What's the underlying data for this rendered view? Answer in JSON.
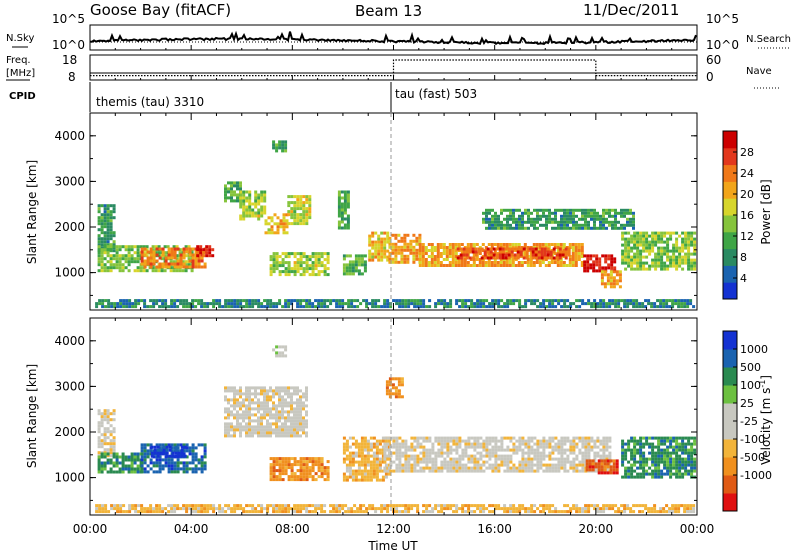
{
  "header": {
    "station": "Goose Bay (fitACF)",
    "beam": "Beam 13",
    "date": "11/Dec/2011"
  },
  "noise_panel": {
    "left_label": "N.Sky",
    "right_label": "N.Search",
    "left_ticks": [
      "10^5",
      "10^0"
    ],
    "right_ticks": [
      "10^5",
      "10^0"
    ]
  },
  "freq_panel": {
    "left_label_1": "Freq.",
    "left_label_2": "[MHz]",
    "right_label": "Nave",
    "left_ticks": [
      "18",
      "8"
    ],
    "right_ticks": [
      "60",
      "0"
    ],
    "nave_low": 8,
    "nave_high": 60,
    "nave_high_interval": [
      "12:00",
      "20:00"
    ]
  },
  "cpid": {
    "label": "CPID",
    "modes": [
      {
        "name": "themis (tau) 3310",
        "start": "00:00"
      },
      {
        "name": "tau (fast) 503",
        "start": "12:00"
      }
    ]
  },
  "x_axis": {
    "label": "Time UT",
    "ticks": [
      "00:00",
      "04:00",
      "08:00",
      "12:00",
      "16:00",
      "20:00",
      "00:00"
    ]
  },
  "colors": {
    "power": [
      "#1432d2",
      "#1a63b0",
      "#2a8a62",
      "#3fa546",
      "#86c43c",
      "#d7d52c",
      "#f2a51a",
      "#f07818",
      "#e2371c",
      "#cc0000"
    ],
    "velocity": [
      "#e01010",
      "#e05a14",
      "#f0901e",
      "#f2b43a",
      "#c8c8c0",
      "#c8c8c0",
      "#6cc040",
      "#2a8a50",
      "#1a63b0",
      "#1432d2"
    ]
  },
  "chart_data": [
    {
      "type": "heatmap",
      "name": "power",
      "ylabel": "Slant Range [km]",
      "xlabel": "",
      "ylim": [
        180,
        4500
      ],
      "yticks": [
        1000,
        2000,
        3000,
        4000
      ],
      "colorbar_label": "Power [dB]",
      "colorbar_range": [
        0,
        32
      ],
      "colorbar_ticks": [
        4,
        8,
        12,
        16,
        20,
        24,
        28
      ],
      "bands": [
        {
          "t0": 0.3,
          "t1": 1.0,
          "r0": 1500,
          "r1": 2500,
          "v": 8
        },
        {
          "t0": 0.3,
          "t1": 4.0,
          "r0": 1050,
          "r1": 1600,
          "v": 12
        },
        {
          "t0": 2.0,
          "t1": 4.5,
          "r0": 1150,
          "r1": 1550,
          "v": 22
        },
        {
          "t0": 4.2,
          "t1": 4.8,
          "r0": 1350,
          "r1": 1600,
          "v": 27
        },
        {
          "t0": 5.3,
          "t1": 5.9,
          "r0": 2600,
          "r1": 3000,
          "v": 10
        },
        {
          "t0": 5.9,
          "t1": 6.9,
          "r0": 2200,
          "r1": 2800,
          "v": 14
        },
        {
          "t0": 6.9,
          "t1": 7.8,
          "r0": 1900,
          "r1": 2300,
          "v": 18
        },
        {
          "t0": 7.8,
          "t1": 8.7,
          "r0": 2100,
          "r1": 2700,
          "v": 15
        },
        {
          "t0": 7.1,
          "t1": 9.4,
          "r0": 950,
          "r1": 1450,
          "v": 14
        },
        {
          "t0": 7.2,
          "t1": 7.7,
          "r0": 3650,
          "r1": 3900,
          "v": 9
        },
        {
          "t0": 10.0,
          "t1": 10.9,
          "r0": 950,
          "r1": 1400,
          "v": 10
        },
        {
          "t0": 11.0,
          "t1": 11.8,
          "r0": 1250,
          "r1": 1900,
          "v": 18
        },
        {
          "t0": 11.8,
          "t1": 13.0,
          "r0": 1250,
          "r1": 1850,
          "v": 20
        },
        {
          "t0": 13.0,
          "t1": 19.5,
          "r0": 1150,
          "r1": 1650,
          "v": 20
        },
        {
          "t0": 14.5,
          "t1": 19.0,
          "r0": 1300,
          "r1": 1550,
          "v": 25
        },
        {
          "t0": 19.5,
          "t1": 20.8,
          "r0": 1050,
          "r1": 1400,
          "v": 28
        },
        {
          "t0": 20.2,
          "t1": 21.0,
          "r0": 700,
          "r1": 1050,
          "v": 20
        },
        {
          "t0": 21.0,
          "t1": 23.9,
          "r0": 1050,
          "r1": 1900,
          "v": 13
        },
        {
          "t0": 15.5,
          "t1": 21.5,
          "r0": 2000,
          "r1": 2400,
          "v": 8
        },
        {
          "t0": 0.2,
          "t1": 23.9,
          "r0": 280,
          "r1": 420,
          "v": 6
        },
        {
          "t0": 9.8,
          "t1": 10.2,
          "r0": 2000,
          "r1": 2800,
          "v": 9
        }
      ]
    },
    {
      "type": "heatmap",
      "name": "velocity",
      "ylabel": "Slant Range [km]",
      "xlabel": "Time UT",
      "ylim": [
        180,
        4500
      ],
      "yticks": [
        1000,
        2000,
        3000,
        4000
      ],
      "colorbar_label": "Velocity [m s^-1]",
      "colorbar_ticks": [
        "1000",
        "500",
        "100",
        "25",
        "-25",
        "-100",
        "-500",
        "-1000"
      ],
      "bands": [
        {
          "t0": 0.3,
          "t1": 1.0,
          "r0": 1500,
          "r1": 2500,
          "v": 4
        },
        {
          "t0": 0.3,
          "t1": 2.0,
          "r0": 1100,
          "r1": 1550,
          "v": 7
        },
        {
          "t0": 2.0,
          "t1": 4.6,
          "r0": 1150,
          "r1": 1750,
          "v": 8
        },
        {
          "t0": 2.4,
          "t1": 3.8,
          "r0": 1500,
          "r1": 1700,
          "v": 9
        },
        {
          "t0": 5.3,
          "t1": 8.6,
          "r0": 1900,
          "r1": 3000,
          "v": 4
        },
        {
          "t0": 7.1,
          "t1": 9.4,
          "r0": 950,
          "r1": 1450,
          "v": 2
        },
        {
          "t0": 10.0,
          "t1": 11.8,
          "r0": 950,
          "r1": 1900,
          "v": 3
        },
        {
          "t0": 11.6,
          "t1": 20.5,
          "r0": 1150,
          "r1": 1900,
          "v": 4
        },
        {
          "t0": 19.6,
          "t1": 20.8,
          "r0": 1100,
          "r1": 1400,
          "v": 1
        },
        {
          "t0": 21.0,
          "t1": 23.9,
          "r0": 1000,
          "r1": 1900,
          "v": 7
        },
        {
          "t0": 11.7,
          "t1": 12.3,
          "r0": 2800,
          "r1": 3200,
          "v": 2
        },
        {
          "t0": 7.2,
          "t1": 7.7,
          "r0": 3650,
          "r1": 3900,
          "v": 5
        },
        {
          "t0": 0.2,
          "t1": 23.9,
          "r0": 280,
          "r1": 420,
          "v": 3
        }
      ]
    }
  ]
}
